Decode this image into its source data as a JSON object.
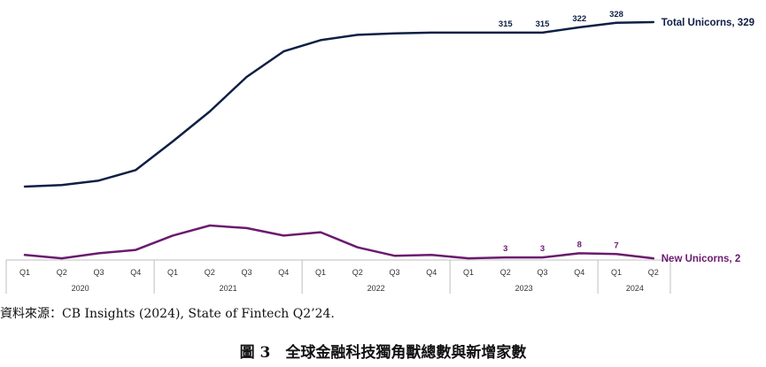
{
  "chart_data": {
    "type": "line",
    "x_quarters": [
      "Q1",
      "Q2",
      "Q3",
      "Q4",
      "Q1",
      "Q2",
      "Q3",
      "Q4",
      "Q1",
      "Q2",
      "Q3",
      "Q4",
      "Q1",
      "Q2",
      "Q3",
      "Q4",
      "Q1",
      "Q2"
    ],
    "x_years": [
      {
        "label": "2020",
        "quarters": 4
      },
      {
        "label": "2021",
        "quarters": 4
      },
      {
        "label": "2022",
        "quarters": 4
      },
      {
        "label": "2023",
        "quarters": 4
      },
      {
        "label": "2024",
        "quarters": 2
      }
    ],
    "series": [
      {
        "name": "Total Unicorns, 329",
        "color": "#0f1f45",
        "values": [
          110,
          112,
          118,
          132,
          170,
          210,
          256,
          290,
          305,
          312,
          314,
          315,
          315,
          315,
          315,
          322,
          328,
          329
        ],
        "labels": [
          "",
          "",
          "",
          "",
          "",
          "",
          "",
          "",
          "",
          "",
          "",
          "",
          "",
          "315",
          "315",
          "322",
          "328",
          ""
        ]
      },
      {
        "name": "New Unicorns, 2",
        "color": "#6b1a6f",
        "values": [
          6,
          2,
          8,
          12,
          29,
          41,
          38,
          29,
          33,
          15,
          5,
          6,
          2,
          3,
          3,
          8,
          7,
          2
        ],
        "labels": [
          "",
          "",
          "",
          "",
          "",
          "",
          "",
          "",
          "",
          "",
          "",
          "",
          "",
          "3",
          "3",
          "8",
          "7",
          ""
        ]
      }
    ]
  },
  "source": "資料來源：CB Insights (2024), State of Fintech Q2’24.",
  "caption": "圖 3　全球金融科技獨角獸總數與新增家數"
}
